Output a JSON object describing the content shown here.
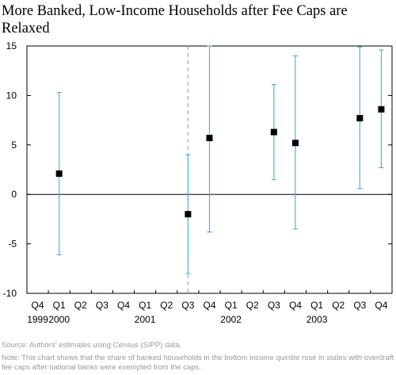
{
  "chart_data": {
    "type": "scatter",
    "title": "More Banked, Low-Income Households after Fee Caps are Relaxed",
    "xlabel": "",
    "ylabel": "",
    "ylim": [
      -10,
      15
    ],
    "yticks": [
      -10,
      -5,
      0,
      5,
      10,
      15
    ],
    "categories": [
      "Q4",
      "Q1",
      "Q2",
      "Q3",
      "Q4",
      "Q1",
      "Q2",
      "Q3",
      "Q4",
      "Q1",
      "Q2",
      "Q3",
      "Q4",
      "Q1",
      "Q2",
      "Q3",
      "Q4"
    ],
    "year_labels": [
      {
        "index": 0,
        "label": "1999"
      },
      {
        "index": 1,
        "label": "2000"
      },
      {
        "index": 5,
        "label": "2001"
      },
      {
        "index": 9,
        "label": "2002"
      },
      {
        "index": 13,
        "label": "2003"
      }
    ],
    "event_line_index": 7,
    "grid": false,
    "point_color": "#000000",
    "errorbar_color": "#4fb3d9",
    "points": [
      {
        "index": 1,
        "value": 2.1,
        "low": -6.1,
        "high": 10.3
      },
      {
        "index": 7,
        "value": -2.0,
        "low": -8.0,
        "high": 4.0
      },
      {
        "index": 8,
        "value": 5.7,
        "low": -3.8,
        "high": 15.0
      },
      {
        "index": 11,
        "value": 6.3,
        "low": 1.5,
        "high": 11.1
      },
      {
        "index": 12,
        "value": 5.2,
        "low": -3.5,
        "high": 14.0
      },
      {
        "index": 15,
        "value": 7.7,
        "low": 0.6,
        "high": 14.9
      },
      {
        "index": 16,
        "value": 8.6,
        "low": 2.7,
        "high": 14.6
      }
    ]
  },
  "notes": {
    "source": "Source: Authors’ estimates using Census (SIPP) data.",
    "note": "Note: This chart shows that the share of banked households in the bottom income quintile rose in states with overdraft fee caps after national banks were exempted from the caps."
  }
}
